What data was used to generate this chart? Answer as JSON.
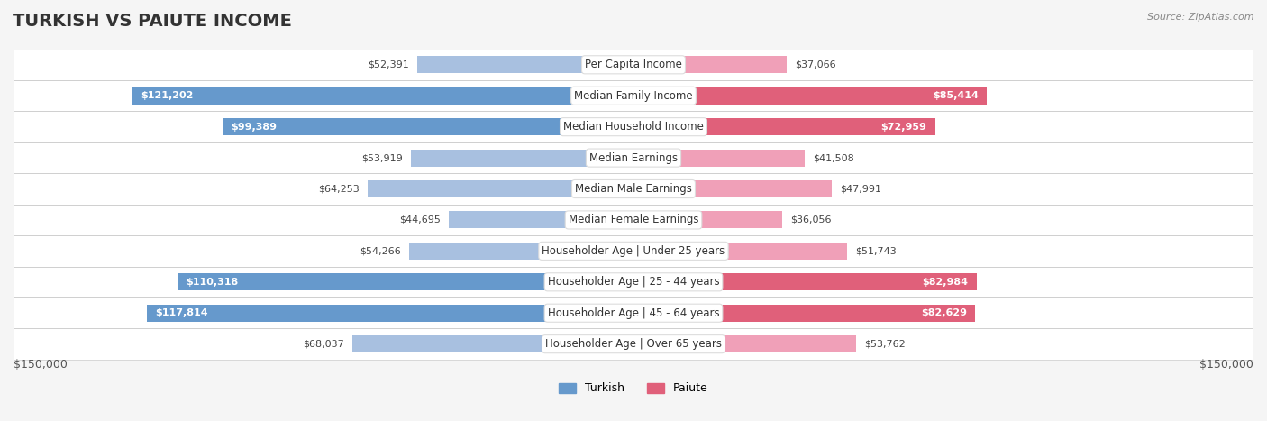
{
  "title": "TURKISH VS PAIUTE INCOME",
  "source": "Source: ZipAtlas.com",
  "categories": [
    "Per Capita Income",
    "Median Family Income",
    "Median Household Income",
    "Median Earnings",
    "Median Male Earnings",
    "Median Female Earnings",
    "Householder Age | Under 25 years",
    "Householder Age | 25 - 44 years",
    "Householder Age | 45 - 64 years",
    "Householder Age | Over 65 years"
  ],
  "turkish_values": [
    52391,
    121202,
    99389,
    53919,
    64253,
    44695,
    54266,
    110318,
    117814,
    68037
  ],
  "paiute_values": [
    37066,
    85414,
    72959,
    41508,
    47991,
    36056,
    51743,
    82984,
    82629,
    53762
  ],
  "turkish_labels": [
    "$52,391",
    "$121,202",
    "$99,389",
    "$53,919",
    "$64,253",
    "$44,695",
    "$54,266",
    "$110,318",
    "$117,814",
    "$68,037"
  ],
  "paiute_labels": [
    "$37,066",
    "$85,414",
    "$72,959",
    "$41,508",
    "$47,991",
    "$36,056",
    "$51,743",
    "$82,984",
    "$82,629",
    "$53,762"
  ],
  "max_value": 150000,
  "turkish_color_light": "#a8c0e0",
  "turkish_color_dark": "#6699cc",
  "paiute_color_light": "#f0a0b8",
  "paiute_color_dark": "#e0607a",
  "turkish_threshold": 80000,
  "paiute_threshold": 70000,
  "bg_color": "#f5f5f5",
  "row_bg": "#ffffff",
  "label_fontsize": 9,
  "title_fontsize": 14,
  "legend_turkish": "Turkish",
  "legend_paiute": "Paiute",
  "xlabel_left": "$150,000",
  "xlabel_right": "$150,000"
}
